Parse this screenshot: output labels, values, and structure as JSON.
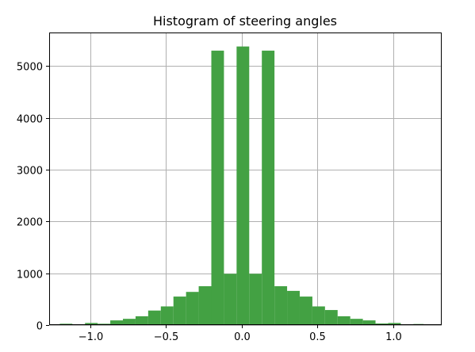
{
  "chart_data": {
    "type": "bar",
    "title": "Histogram of steering angles",
    "xlabel": "",
    "ylabel": "",
    "xlim": [
      -1.27,
      1.32
    ],
    "ylim": [
      0,
      5650
    ],
    "grid": true,
    "legend": "none",
    "bar_color": "#43a143",
    "x_ticks": [
      {
        "value": -1.0,
        "label": "−1.0"
      },
      {
        "value": -0.5,
        "label": "−0.5"
      },
      {
        "value": 0.0,
        "label": "0.0"
      },
      {
        "value": 0.5,
        "label": "0.5"
      },
      {
        "value": 1.0,
        "label": "1.0"
      }
    ],
    "y_ticks": [
      {
        "value": 0,
        "label": "0"
      },
      {
        "value": 1000,
        "label": "1000"
      },
      {
        "value": 2000,
        "label": "2000"
      },
      {
        "value": 3000,
        "label": "3000"
      },
      {
        "value": 4000,
        "label": "4000"
      },
      {
        "value": 5000,
        "label": "5000"
      }
    ],
    "bins": [
      -1.2,
      -1.1167,
      -1.0333,
      -0.95,
      -0.8667,
      -0.7833,
      -0.7,
      -0.6167,
      -0.5333,
      -0.45,
      -0.3667,
      -0.2833,
      -0.2,
      -0.1167,
      -0.0333,
      0.05,
      0.1333,
      0.2167,
      0.3,
      0.3833,
      0.4667,
      0.55,
      0.6333,
      0.7167,
      0.8,
      0.8833,
      0.9667,
      1.05,
      1.1333,
      1.2
    ],
    "values": [
      25,
      10,
      40,
      25,
      90,
      120,
      170,
      280,
      360,
      550,
      640,
      750,
      5300,
      990,
      5380,
      990,
      5300,
      750,
      660,
      550,
      360,
      290,
      170,
      120,
      90,
      30,
      40,
      10,
      20,
      0
    ],
    "bin_edges": [
      -1.2,
      -1.1167,
      -1.0333,
      -0.95,
      -0.8667,
      -0.7833,
      -0.7,
      -0.6167,
      -0.5333,
      -0.45,
      -0.3667,
      -0.2833,
      -0.2,
      -0.1167,
      -0.0333,
      0.05,
      0.1333,
      0.2167,
      0.3,
      0.3833,
      0.4667,
      0.55,
      0.6333,
      0.7167,
      0.8,
      0.8833,
      0.9667,
      1.05,
      1.1333,
      1.2
    ]
  }
}
